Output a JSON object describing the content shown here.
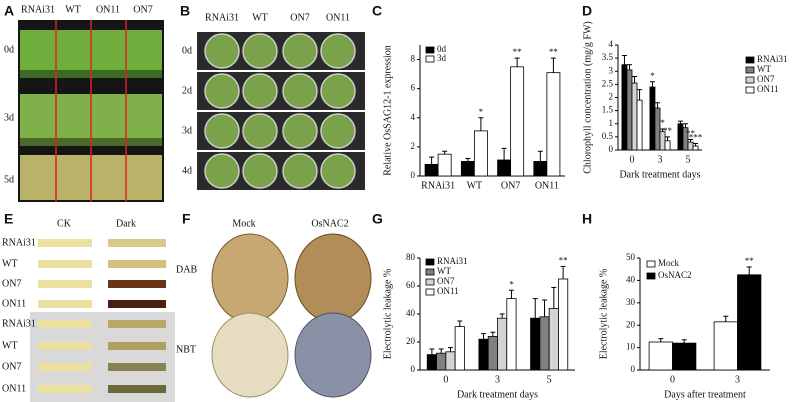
{
  "photo_panels": [
    {
      "label": "A",
      "columns": [
        "RNAi31",
        "WT",
        "ON11",
        "ON7"
      ],
      "rows": [
        "0d",
        "3d",
        "5d"
      ]
    },
    {
      "label": "B",
      "columns": [
        "RNAi31",
        "WT",
        "ON7",
        "ON11"
      ],
      "rows": [
        "0d",
        "2d",
        "3d",
        "4d"
      ]
    },
    {
      "label": "E",
      "columns": [
        "CK",
        "Dark"
      ],
      "rows": [
        "RNAi31",
        "WT",
        "ON7",
        "ON11",
        "RNAi31",
        "WT",
        "ON7",
        "ON11"
      ]
    },
    {
      "label": "F",
      "columns": [
        "Mock",
        "OsNAC2"
      ],
      "rows": [
        "DAB",
        "NBT"
      ]
    }
  ],
  "chart_data": [
    {
      "type": "bar",
      "label": "C",
      "y_label": "Relative OsSAG12-1 expression",
      "categories": [
        "RNAi31",
        "WT",
        "ON7",
        "ON11"
      ],
      "series": [
        {
          "name": "0d",
          "color": "#000000",
          "values": [
            0.8,
            1.0,
            1.1,
            1.0
          ],
          "errors": [
            0.5,
            0.2,
            0.8,
            0.7
          ]
        },
        {
          "name": "3d",
          "color": "#ffffff",
          "values": [
            1.5,
            3.1,
            7.5,
            7.1
          ],
          "errors": [
            0.2,
            0.9,
            0.6,
            1.0
          ],
          "significance": [
            null,
            "*",
            "**",
            "**"
          ]
        }
      ],
      "ylim": [
        0,
        9
      ],
      "yticks": [
        0,
        2,
        4,
        6,
        8
      ]
    },
    {
      "type": "bar",
      "label": "D",
      "x_label": "Dark treatment days",
      "y_label": "Chlorophyll concentration (mg/g FW)",
      "categories": [
        "0",
        "3",
        "5"
      ],
      "series": [
        {
          "name": "RNAi31",
          "color": "#000000",
          "values": [
            3.25,
            2.4,
            1.0
          ],
          "errors": [
            0.35,
            0.2,
            0.1
          ],
          "significance": [
            null,
            "*",
            null
          ]
        },
        {
          "name": "WT",
          "color": "#808080",
          "values": [
            3.05,
            1.6,
            0.85
          ],
          "errors": [
            0.2,
            0.2,
            0.15
          ]
        },
        {
          "name": "ON7",
          "color": "#d4d4d4",
          "values": [
            2.55,
            0.7,
            0.3
          ],
          "errors": [
            0.25,
            0.1,
            0.1
          ],
          "significance": [
            null,
            "*",
            "**"
          ]
        },
        {
          "name": "ON11",
          "color": "#ffffff",
          "values": [
            1.9,
            0.35,
            0.15
          ],
          "errors": [
            0.4,
            0.15,
            0.1
          ],
          "significance": [
            null,
            "**",
            "***"
          ]
        }
      ],
      "ylim": [
        0,
        4
      ],
      "yticks": [
        0,
        0.5,
        1,
        1.5,
        2,
        2.5,
        3,
        3.5,
        4
      ]
    },
    {
      "type": "bar",
      "label": "G",
      "x_label": "Dark treatment days",
      "y_label": "Electrolytic leakage %",
      "categories": [
        "0",
        "3",
        "5"
      ],
      "series": [
        {
          "name": "RNAi31",
          "color": "#000000",
          "values": [
            11,
            22,
            37
          ],
          "errors": [
            4,
            4,
            14
          ]
        },
        {
          "name": "WT",
          "color": "#808080",
          "values": [
            12,
            24,
            38
          ],
          "errors": [
            3,
            3,
            12
          ]
        },
        {
          "name": "ON7",
          "color": "#d4d4d4",
          "values": [
            13,
            37,
            44
          ],
          "errors": [
            3,
            3,
            15
          ]
        },
        {
          "name": "ON11",
          "color": "#ffffff",
          "values": [
            31,
            51,
            65
          ],
          "errors": [
            4,
            6,
            9
          ],
          "significance": [
            null,
            "*",
            "**"
          ]
        }
      ],
      "ylim": [
        0,
        80
      ],
      "yticks": [
        0,
        20,
        40,
        60,
        80
      ]
    },
    {
      "type": "bar",
      "label": "H",
      "x_label": "Days after treatment",
      "y_label": "Electrolytic leakage %",
      "categories": [
        "0",
        "3"
      ],
      "series": [
        {
          "name": "Mock",
          "color": "#ffffff",
          "values": [
            12.5,
            21.5
          ],
          "errors": [
            1.5,
            2.5
          ]
        },
        {
          "name": "OsNAC2",
          "color": "#000000",
          "values": [
            12,
            42.5
          ],
          "errors": [
            1.5,
            3.5
          ],
          "significance": [
            null,
            "**"
          ]
        }
      ],
      "ylim": [
        0,
        50
      ],
      "yticks": [
        0,
        10,
        20,
        30,
        40,
        50
      ]
    }
  ]
}
